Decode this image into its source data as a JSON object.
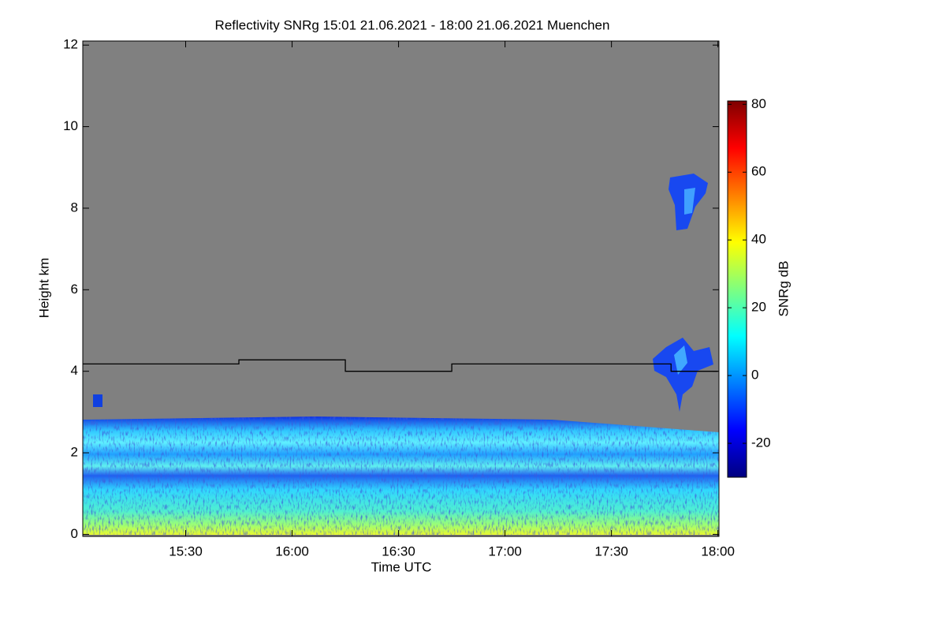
{
  "chart_data": {
    "type": "heatmap",
    "title": "Reflectivity SNRg   15:01 21.06.2021 - 18:00 21.06.2021 Muenchen",
    "x_label": "Time UTC",
    "y_label": "Height km",
    "xlim": [
      15.0167,
      18.005
    ],
    "xticks": [
      {
        "value": 15.5,
        "label": "15:30"
      },
      {
        "value": 16.0,
        "label": "16:00"
      },
      {
        "value": 16.5,
        "label": "16:30"
      },
      {
        "value": 17.0,
        "label": "17:00"
      },
      {
        "value": 17.5,
        "label": "17:30"
      },
      {
        "value": 18.0,
        "label": "18:00"
      }
    ],
    "ylim": [
      -0.05,
      12.1
    ],
    "yticks": [
      0,
      2,
      4,
      6,
      8,
      10,
      12
    ],
    "colorbar": {
      "label": "SNRg dB",
      "colormap": "jet",
      "clim": [
        -30,
        81
      ],
      "ticks": [
        -20,
        0,
        20,
        40,
        60,
        80
      ]
    },
    "line": {
      "color": "#000000",
      "x": [
        15.0167,
        15.75,
        15.75,
        16.25,
        16.25,
        16.75,
        16.75,
        17.78,
        17.78,
        18.0
      ],
      "values": [
        4.18,
        4.18,
        4.28,
        4.28,
        4.0,
        4.0,
        4.18,
        4.18,
        4.0,
        4.0
      ]
    }
  }
}
